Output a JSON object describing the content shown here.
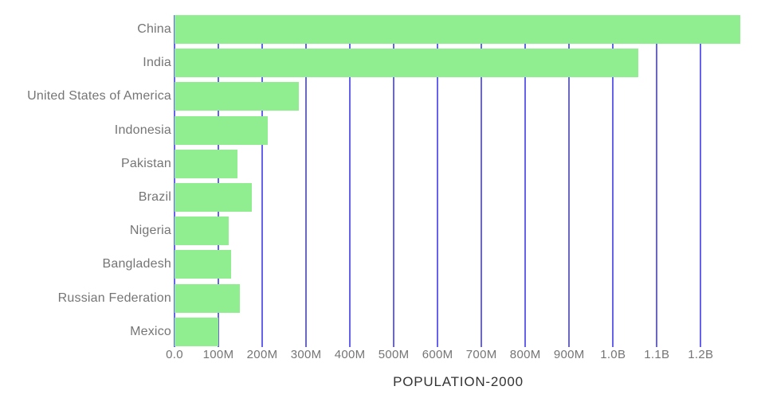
{
  "chart_data": {
    "type": "bar",
    "orientation": "horizontal",
    "title": "POPULATION-2000",
    "categories": [
      "China",
      "India",
      "United States of America",
      "Indonesia",
      "Pakistan",
      "Brazil",
      "Nigeria",
      "Bangladesh",
      "Russian Federation",
      "Mexico"
    ],
    "values": [
      1291,
      1058,
      283,
      212,
      144,
      176,
      124,
      129,
      149,
      100
    ],
    "values_unit": "millions",
    "xlabel": "",
    "ylabel": "",
    "x_axis": {
      "tick_values_millions": [
        0,
        100,
        200,
        300,
        400,
        500,
        600,
        700,
        800,
        900,
        1000,
        1100,
        1200
      ],
      "tick_labels": [
        "0.0",
        "100M",
        "200M",
        "300M",
        "400M",
        "500M",
        "600M",
        "700M",
        "800M",
        "900M",
        "1.0B",
        "1.1B",
        "1.2B"
      ],
      "range_millions": [
        0,
        1294
      ],
      "grid": true
    },
    "legend": "none",
    "colors": {
      "bar": "#90EE90",
      "gridline": "#6762EE",
      "axis_text": "#757575",
      "title": "#333333"
    }
  }
}
